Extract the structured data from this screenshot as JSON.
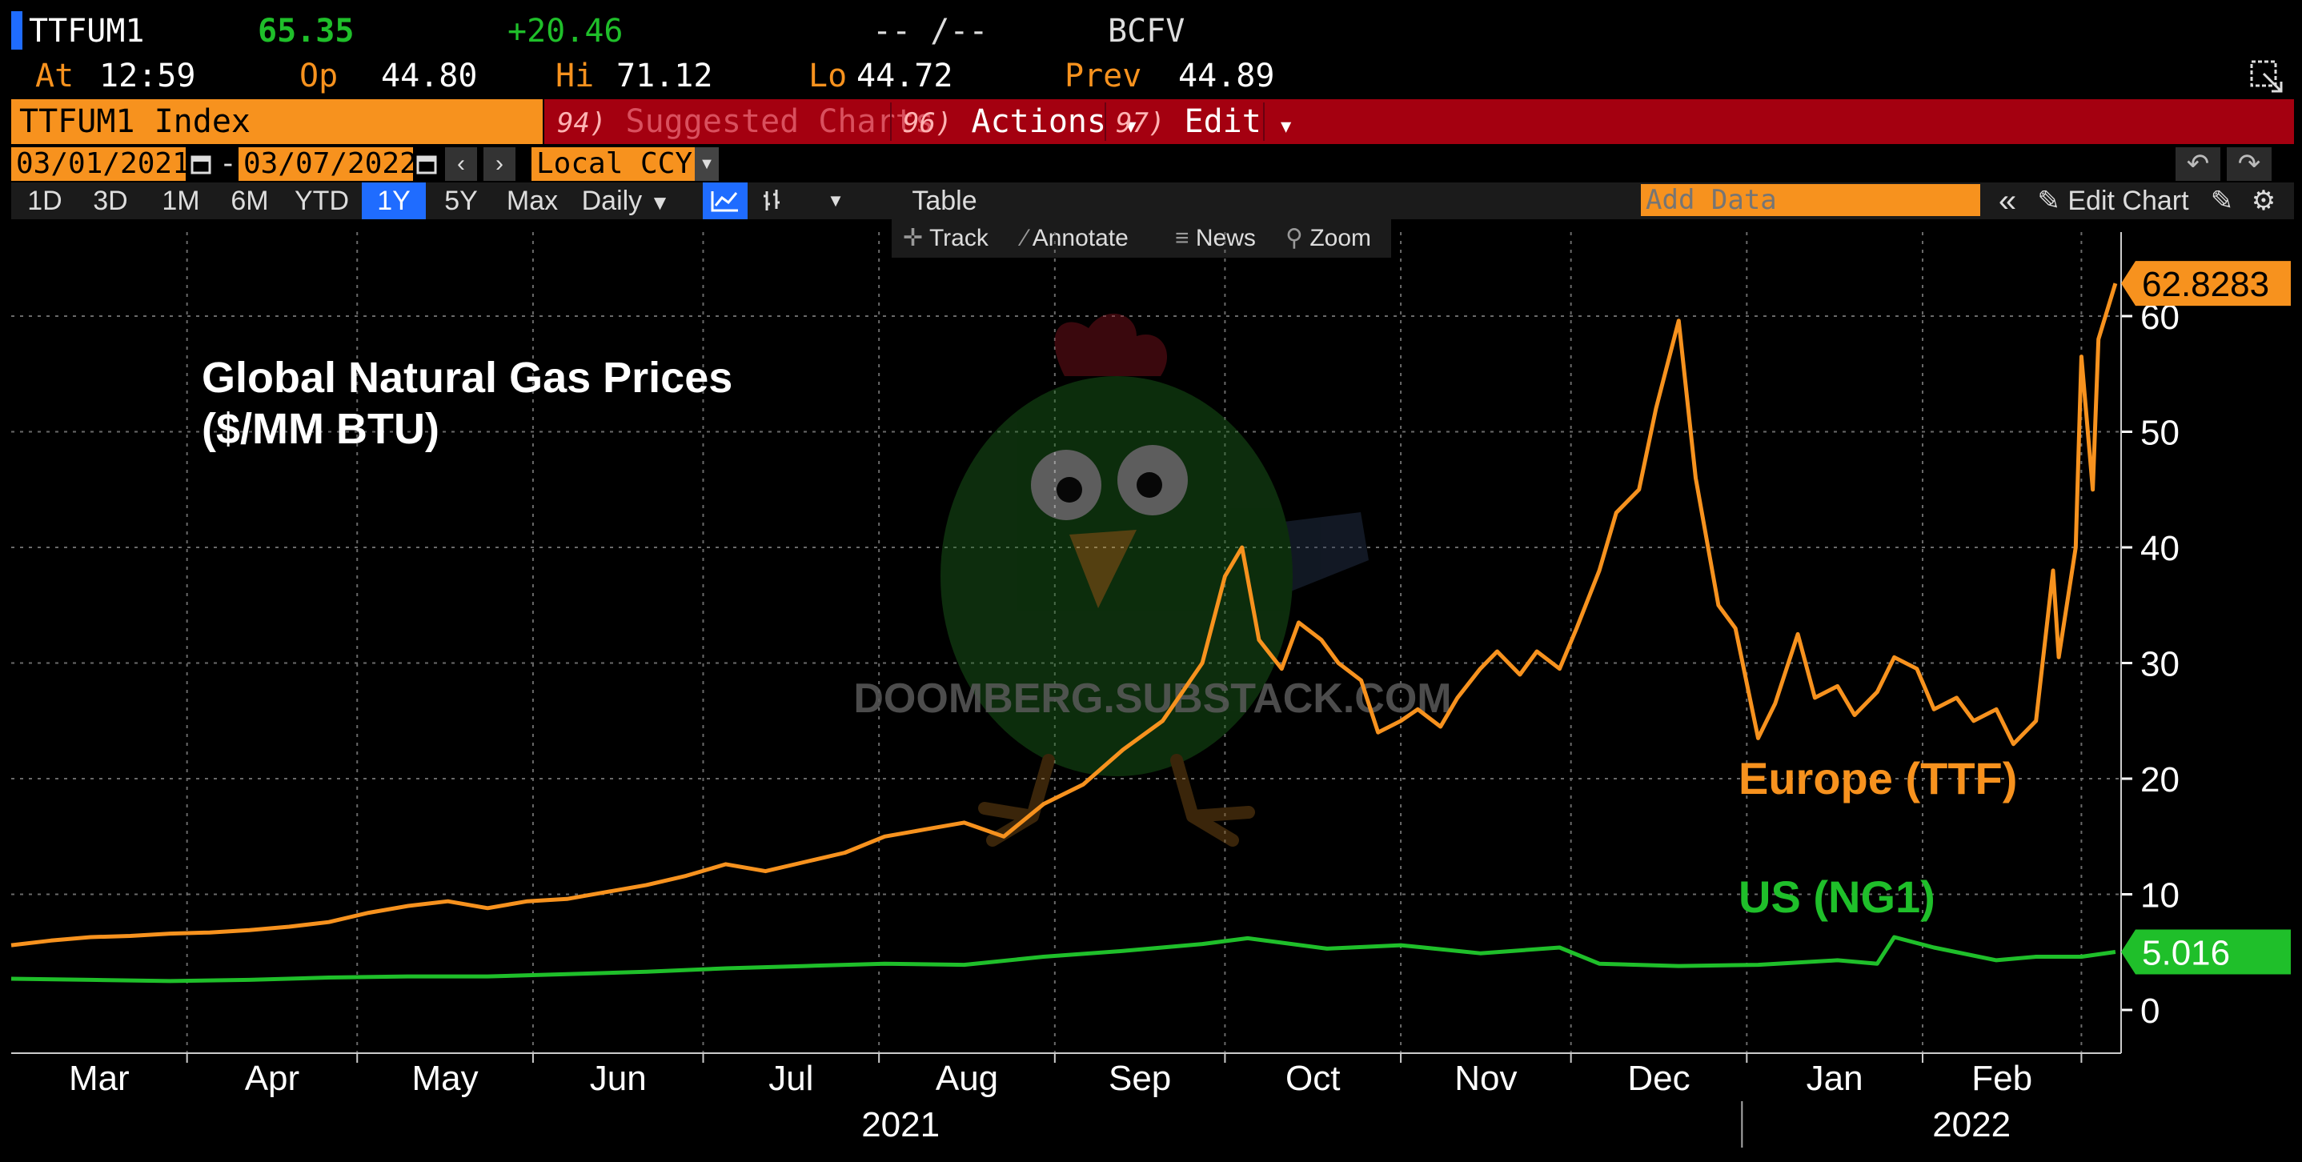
{
  "header": {
    "ticker": "TTFUM1",
    "last": "65.35",
    "change": "+20.46",
    "bidask": "-- /--",
    "source": "BCFV",
    "at_label": "At",
    "at_time": "12:59",
    "op_label": "Op",
    "op_value": "44.80",
    "hi_label": "Hi",
    "hi_value": "71.12",
    "lo_label": "Lo",
    "lo_value": "44.72",
    "prev_label": "Prev",
    "prev_value": "44.89"
  },
  "menu": {
    "security": "TTFUM1 Index",
    "suggested_num": "94)",
    "suggested": "Suggested Charts",
    "actions_num": "96)",
    "actions": "Actions",
    "edit_num": "97)",
    "edit": "Edit"
  },
  "range": {
    "start": "03/01/2021",
    "end": "03/07/2022",
    "currency": "Local CCY"
  },
  "periods": [
    "1D",
    "3D",
    "1M",
    "6M",
    "YTD",
    "1Y",
    "5Y",
    "Max"
  ],
  "active_period": "1Y",
  "frequency": "Daily",
  "table_label": "Table",
  "add_data_placeholder": "Add Data",
  "edit_chart": "Edit Chart",
  "tools": {
    "track": "Track",
    "annotate": "Annotate",
    "news": "News",
    "zoom": "Zoom"
  },
  "watermark": "DOOMBERG.SUBSTACK.COM",
  "colors": {
    "europe": "#f7921e",
    "us": "#1fbf2a",
    "grid": "#6a6a6a",
    "axis": "#ffffff"
  },
  "chart_data": {
    "type": "line",
    "title": "Global Natural Gas Prices\n($/MM BTU)",
    "ylim": [
      0,
      65
    ],
    "yticks": [
      0,
      10,
      20,
      30,
      40,
      50,
      60
    ],
    "x_months": [
      "Mar",
      "Apr",
      "May",
      "Jun",
      "Jul",
      "Aug",
      "Sep",
      "Oct",
      "Nov",
      "Dec",
      "Jan",
      "Feb"
    ],
    "x_years": [
      "2021",
      "2022"
    ],
    "xlim": [
      "2021-03-01",
      "2022-03-08"
    ],
    "grid": true,
    "series": [
      {
        "name": "Europe (TTF)",
        "last_label": "62.8283",
        "points": [
          [
            "2021-03-01",
            5.6
          ],
          [
            "2021-03-08",
            6.0
          ],
          [
            "2021-03-15",
            6.3
          ],
          [
            "2021-03-22",
            6.4
          ],
          [
            "2021-03-29",
            6.6
          ],
          [
            "2021-04-05",
            6.7
          ],
          [
            "2021-04-12",
            6.9
          ],
          [
            "2021-04-19",
            7.2
          ],
          [
            "2021-04-26",
            7.6
          ],
          [
            "2021-05-03",
            8.4
          ],
          [
            "2021-05-10",
            9.0
          ],
          [
            "2021-05-17",
            9.4
          ],
          [
            "2021-05-24",
            8.8
          ],
          [
            "2021-05-31",
            9.4
          ],
          [
            "2021-06-07",
            9.6
          ],
          [
            "2021-06-14",
            10.2
          ],
          [
            "2021-06-21",
            10.8
          ],
          [
            "2021-06-28",
            11.6
          ],
          [
            "2021-07-05",
            12.6
          ],
          [
            "2021-07-12",
            12.0
          ],
          [
            "2021-07-19",
            12.8
          ],
          [
            "2021-07-26",
            13.6
          ],
          [
            "2021-08-02",
            15.0
          ],
          [
            "2021-08-09",
            15.6
          ],
          [
            "2021-08-16",
            16.2
          ],
          [
            "2021-08-23",
            15.0
          ],
          [
            "2021-08-30",
            17.8
          ],
          [
            "2021-09-06",
            19.5
          ],
          [
            "2021-09-13",
            22.5
          ],
          [
            "2021-09-20",
            25.0
          ],
          [
            "2021-09-27",
            30.0
          ],
          [
            "2021-10-01",
            37.5
          ],
          [
            "2021-10-04",
            40.0
          ],
          [
            "2021-10-07",
            32.0
          ],
          [
            "2021-10-11",
            29.5
          ],
          [
            "2021-10-14",
            33.5
          ],
          [
            "2021-10-18",
            32.0
          ],
          [
            "2021-10-21",
            30.0
          ],
          [
            "2021-10-25",
            28.5
          ],
          [
            "2021-10-28",
            24.0
          ],
          [
            "2021-11-01",
            25.0
          ],
          [
            "2021-11-04",
            26.0
          ],
          [
            "2021-11-08",
            24.5
          ],
          [
            "2021-11-11",
            27.0
          ],
          [
            "2021-11-15",
            29.5
          ],
          [
            "2021-11-18",
            31.0
          ],
          [
            "2021-11-22",
            29.0
          ],
          [
            "2021-11-25",
            31.0
          ],
          [
            "2021-11-29",
            29.5
          ],
          [
            "2021-12-02",
            33.0
          ],
          [
            "2021-12-06",
            38.0
          ],
          [
            "2021-12-09",
            43.0
          ],
          [
            "2021-12-13",
            45.0
          ],
          [
            "2021-12-16",
            52.0
          ],
          [
            "2021-12-20",
            59.6
          ],
          [
            "2021-12-23",
            46.0
          ],
          [
            "2021-12-27",
            35.0
          ],
          [
            "2021-12-30",
            33.0
          ],
          [
            "2022-01-03",
            23.5
          ],
          [
            "2022-01-06",
            26.5
          ],
          [
            "2022-01-10",
            32.5
          ],
          [
            "2022-01-13",
            27.0
          ],
          [
            "2022-01-17",
            28.0
          ],
          [
            "2022-01-20",
            25.5
          ],
          [
            "2022-01-24",
            27.5
          ],
          [
            "2022-01-27",
            30.5
          ],
          [
            "2022-01-31",
            29.5
          ],
          [
            "2022-02-03",
            26.0
          ],
          [
            "2022-02-07",
            27.0
          ],
          [
            "2022-02-10",
            25.0
          ],
          [
            "2022-02-14",
            26.0
          ],
          [
            "2022-02-17",
            23.0
          ],
          [
            "2022-02-21",
            25.0
          ],
          [
            "2022-02-24",
            38.0
          ],
          [
            "2022-02-25",
            30.5
          ],
          [
            "2022-02-28",
            40.0
          ],
          [
            "2022-03-01",
            56.5
          ],
          [
            "2022-03-03",
            45.0
          ],
          [
            "2022-03-04",
            58.0
          ],
          [
            "2022-03-07",
            62.83
          ]
        ]
      },
      {
        "name": "US (NG1)",
        "last_label": "5.016",
        "points": [
          [
            "2021-03-01",
            2.7
          ],
          [
            "2021-03-15",
            2.6
          ],
          [
            "2021-03-29",
            2.5
          ],
          [
            "2021-04-12",
            2.6
          ],
          [
            "2021-04-26",
            2.8
          ],
          [
            "2021-05-10",
            2.9
          ],
          [
            "2021-05-24",
            2.9
          ],
          [
            "2021-06-07",
            3.1
          ],
          [
            "2021-06-21",
            3.3
          ],
          [
            "2021-07-05",
            3.6
          ],
          [
            "2021-07-19",
            3.8
          ],
          [
            "2021-08-02",
            4.0
          ],
          [
            "2021-08-16",
            3.9
          ],
          [
            "2021-08-30",
            4.6
          ],
          [
            "2021-09-13",
            5.1
          ],
          [
            "2021-09-27",
            5.7
          ],
          [
            "2021-10-05",
            6.2
          ],
          [
            "2021-10-19",
            5.3
          ],
          [
            "2021-11-01",
            5.6
          ],
          [
            "2021-11-15",
            4.9
          ],
          [
            "2021-11-29",
            5.4
          ],
          [
            "2021-12-06",
            4.0
          ],
          [
            "2021-12-20",
            3.8
          ],
          [
            "2022-01-03",
            3.9
          ],
          [
            "2022-01-17",
            4.3
          ],
          [
            "2022-01-24",
            4.0
          ],
          [
            "2022-01-27",
            6.3
          ],
          [
            "2022-02-03",
            5.4
          ],
          [
            "2022-02-14",
            4.3
          ],
          [
            "2022-02-21",
            4.6
          ],
          [
            "2022-03-01",
            4.6
          ],
          [
            "2022-03-07",
            5.02
          ]
        ]
      }
    ]
  }
}
